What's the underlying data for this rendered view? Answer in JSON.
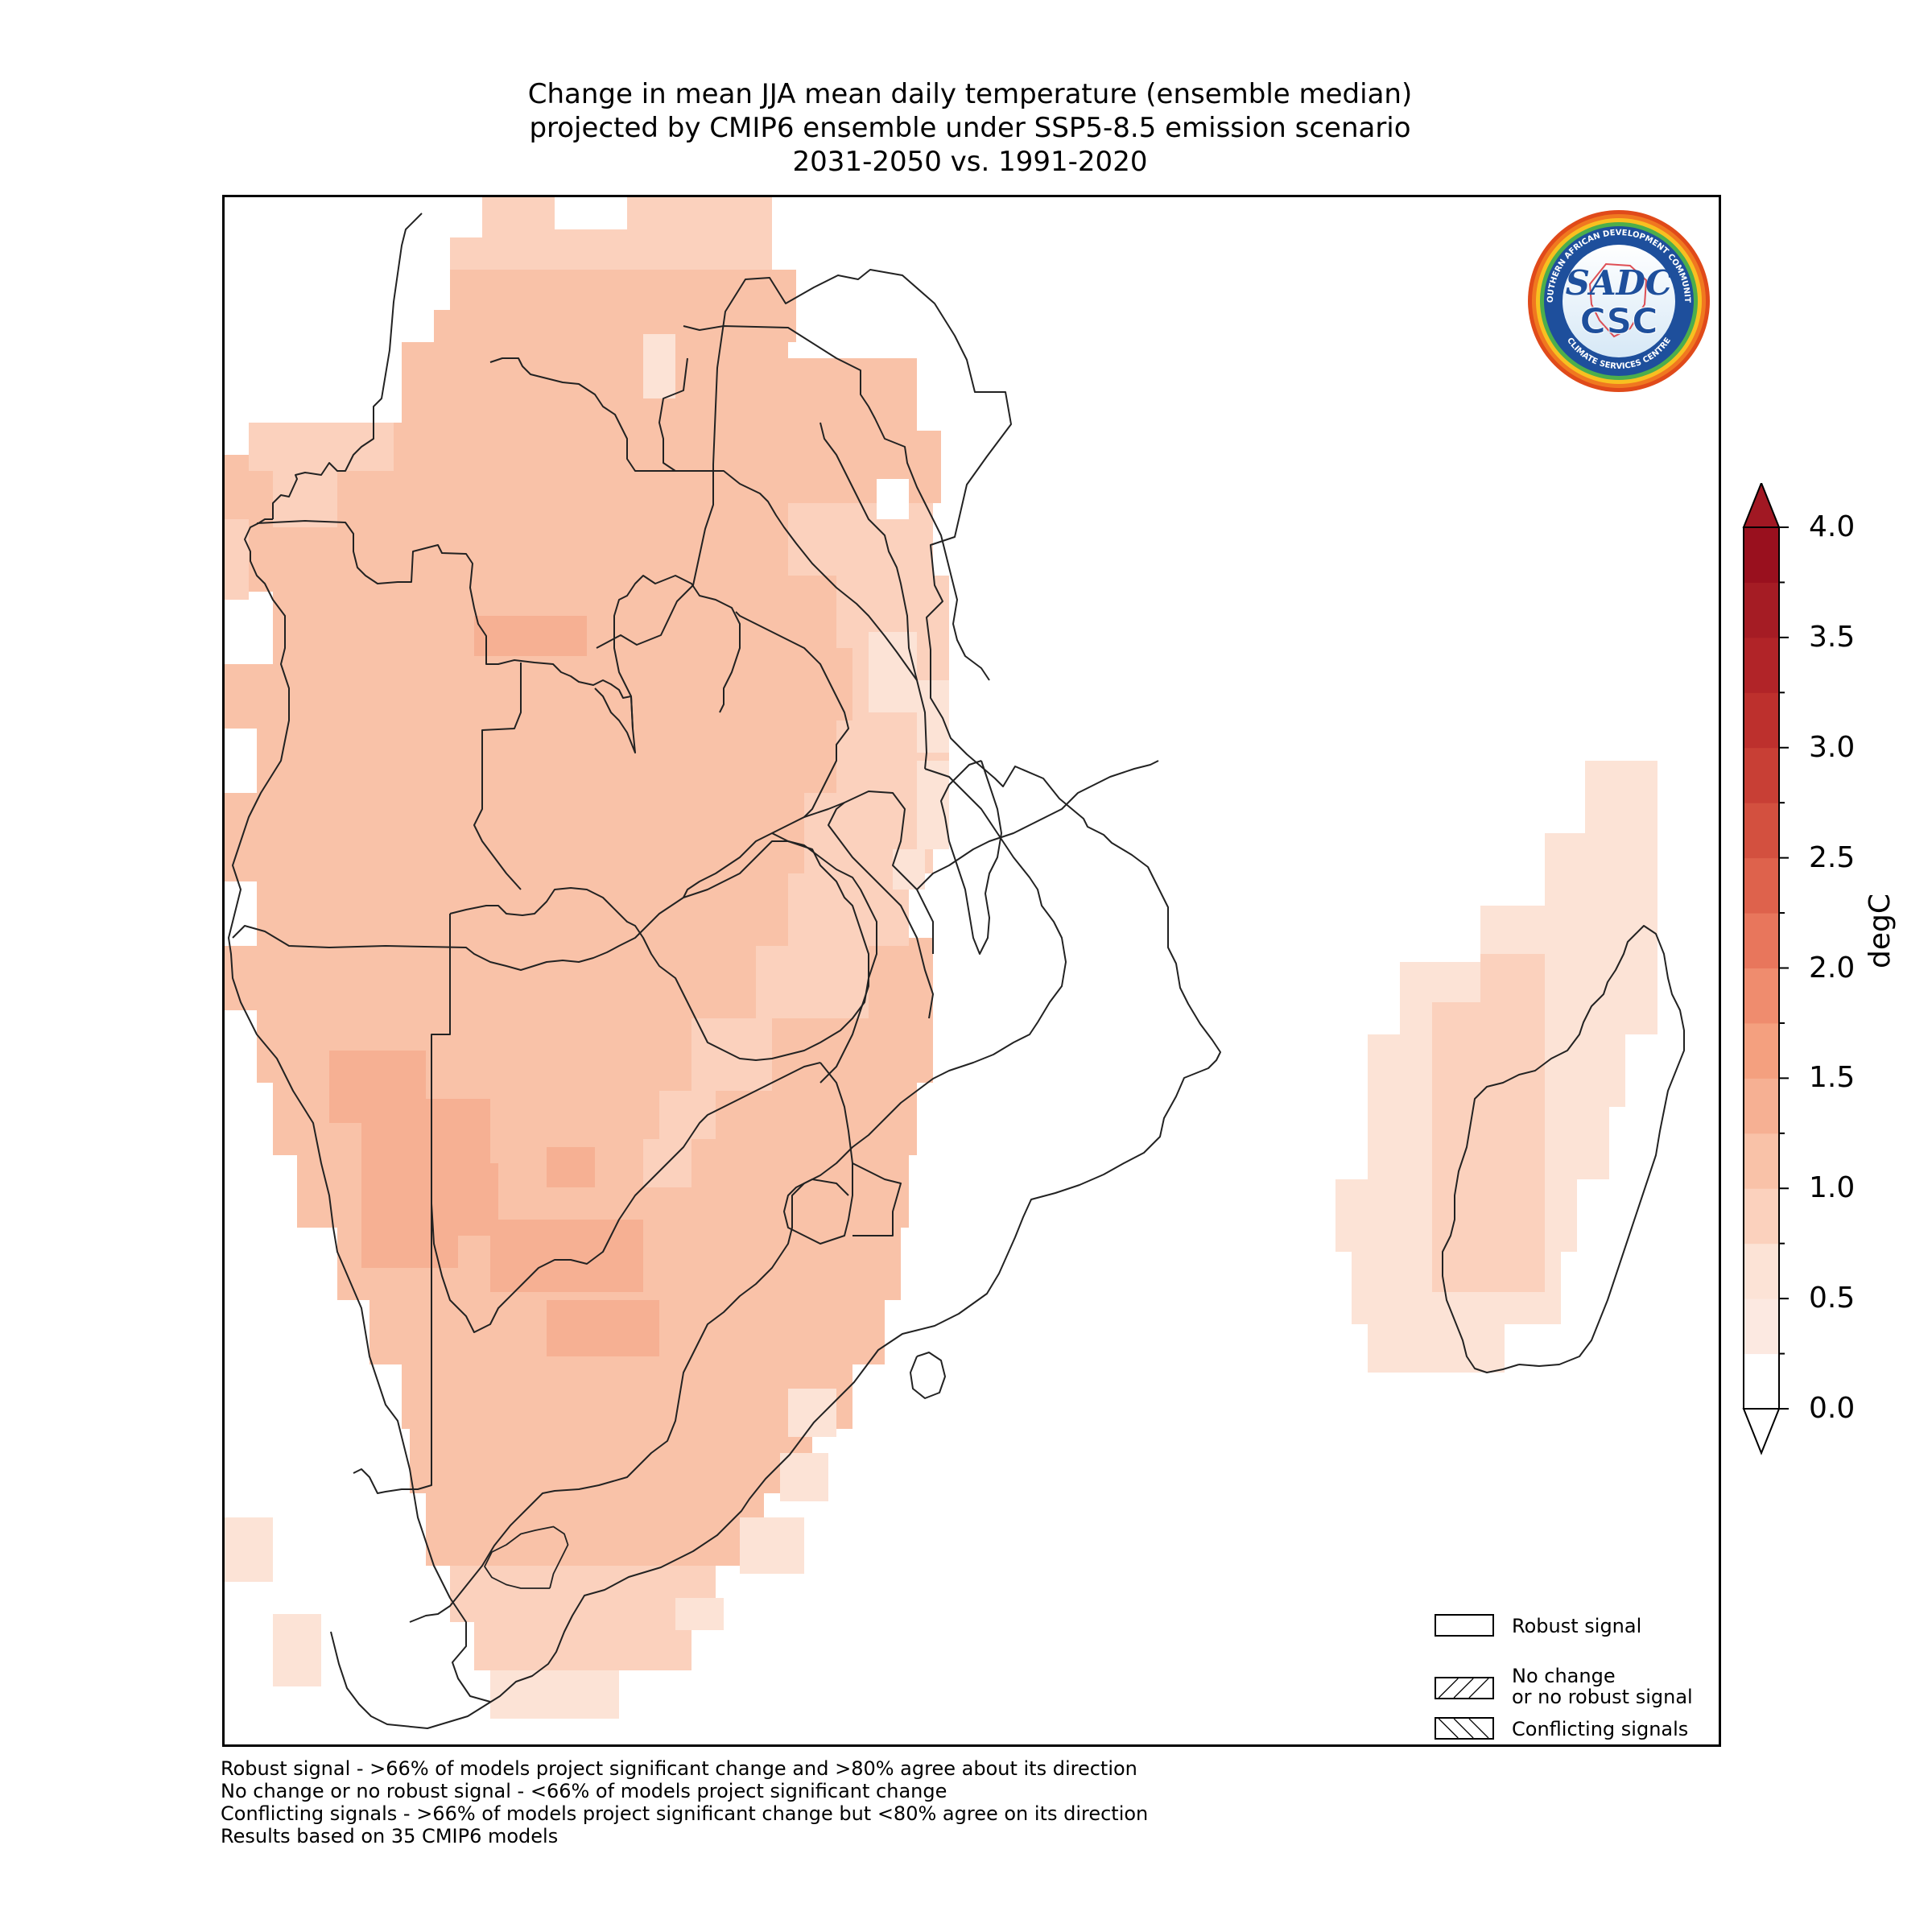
{
  "title": {
    "line1": "Change in mean JJA mean daily temperature (ensemble median)",
    "line2": "projected by CMIP6 ensemble under SSP5-8.5 emission scenario",
    "line3": "2031-2050 vs. 1991-2020"
  },
  "colorbar": {
    "label": "degC",
    "ticks": [
      "0.0",
      "0.5",
      "1.0",
      "1.5",
      "2.0",
      "2.5",
      "3.0",
      "3.5",
      "4.0"
    ],
    "range": [
      0.0,
      4.0
    ],
    "step": 0.25,
    "extend": "both",
    "colormap": "Reds (white to dark red)"
  },
  "legend": {
    "items": [
      {
        "label_lines": [
          "Robust signal"
        ],
        "pattern": "none"
      },
      {
        "label_lines": [
          "No change",
          "or no robust signal"
        ],
        "pattern": "forward-hatch"
      },
      {
        "label_lines": [
          "Conflicting signals"
        ],
        "pattern": "back-hatch"
      }
    ]
  },
  "footnotes": [
    "Robust signal - >66% of models project significant change and >80% agree about its direction",
    "No change or no robust signal - <66% of models project significant change",
    "Conflicting signals - >66% of models project significant change but <80% agree on its direction",
    "Results based on 35 CMIP6 models"
  ],
  "logo": {
    "main_text": "CSC",
    "emblem_text": "SADC",
    "ring_top": "SOUTHERN AFRICAN DEVELOPMENT COMMUNITY",
    "ring_bottom": "CLIMATE SERVICES CENTRE"
  },
  "map": {
    "region": "Southern Africa",
    "colors": {
      "0.75-1.0": "#fce3d6",
      "1.0-1.25": "#fbd1bd",
      "1.25-1.5": "#f9c2a8",
      "1.5-1.75": "#f6b093"
    }
  }
}
